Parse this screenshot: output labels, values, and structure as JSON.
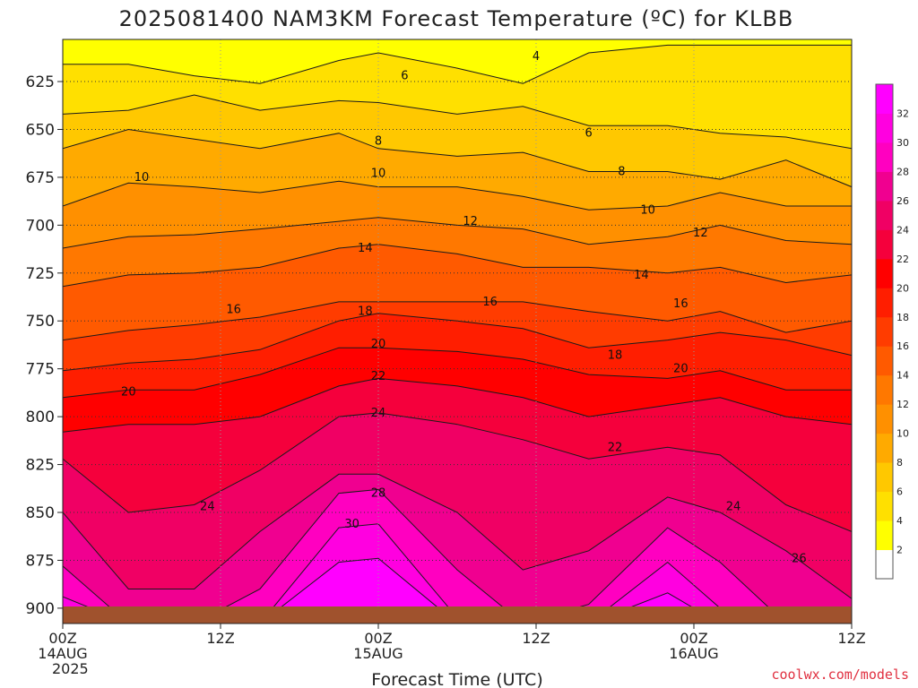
{
  "chart_data": {
    "type": "heatmap",
    "title": "2025081400 NAM3KM Forecast Temperature (ºC) for KLBB",
    "xlabel": "Forecast Time (UTC)",
    "ylabel": "",
    "x_unit": "forecast hour",
    "xlim": [
      0,
      60
    ],
    "ylim": [
      603,
      908
    ],
    "y_inverted": true,
    "grid": true,
    "y_ticks": [
      625,
      650,
      675,
      700,
      725,
      750,
      775,
      800,
      825,
      850,
      875,
      900
    ],
    "y_tick_labels": [
      "625",
      "650",
      "675",
      "700",
      "725",
      "750",
      "775",
      "800",
      "825",
      "850",
      "875",
      "900"
    ],
    "x_ticks": [
      {
        "hour": 0,
        "line1": "00Z",
        "line2": "14AUG",
        "line3": "2025"
      },
      {
        "hour": 12,
        "line1": "12Z",
        "line2": "",
        "line3": ""
      },
      {
        "hour": 24,
        "line1": "00Z",
        "line2": "15AUG",
        "line3": ""
      },
      {
        "hour": 36,
        "line1": "12Z",
        "line2": "",
        "line3": ""
      },
      {
        "hour": 48,
        "line1": "00Z",
        "line2": "16AUG",
        "line3": ""
      },
      {
        "hour": 60,
        "line1": "12Z",
        "line2": "",
        "line3": ""
      }
    ],
    "colorbar": {
      "labels": [
        "2",
        "4",
        "6",
        "8",
        "10",
        "12",
        "14",
        "16",
        "18",
        "20",
        "22",
        "24",
        "26",
        "28",
        "30",
        "32"
      ],
      "colors": [
        "#ffffff",
        "#ffff00",
        "#ffe000",
        "#ffc800",
        "#ffaa00",
        "#ff9000",
        "#ff7800",
        "#ff5a00",
        "#ff3c00",
        "#ff1e00",
        "#ff0000",
        "#f5003c",
        "#f00064",
        "#f00090",
        "#ff00c0",
        "#ff00e0",
        "#ff00ff"
      ]
    },
    "isotherms": [
      {
        "value": 4,
        "pressure": [
          616,
          616,
          622,
          626,
          614,
          610,
          618,
          626,
          610,
          606,
          606,
          606,
          606
        ]
      },
      {
        "value": 6,
        "pressure": [
          642,
          640,
          632,
          640,
          635,
          636,
          642,
          638,
          648,
          648,
          652,
          654,
          660
        ]
      },
      {
        "value": 8,
        "pressure": [
          660,
          650,
          655,
          660,
          652,
          660,
          664,
          662,
          672,
          672,
          676,
          666,
          680
        ]
      },
      {
        "value": 10,
        "pressure": [
          690,
          678,
          680,
          683,
          677,
          680,
          680,
          685,
          692,
          690,
          683,
          690,
          690
        ]
      },
      {
        "value": 12,
        "pressure": [
          712,
          706,
          705,
          702,
          698,
          696,
          700,
          702,
          710,
          706,
          700,
          708,
          710
        ]
      },
      {
        "value": 14,
        "pressure": [
          732,
          726,
          725,
          722,
          712,
          710,
          715,
          722,
          722,
          725,
          722,
          730,
          726
        ]
      },
      {
        "value": 16,
        "pressure": [
          760,
          755,
          752,
          748,
          740,
          740,
          740,
          740,
          745,
          750,
          745,
          756,
          750
        ]
      },
      {
        "value": 18,
        "pressure": [
          776,
          772,
          770,
          765,
          750,
          746,
          750,
          754,
          764,
          760,
          756,
          760,
          768
        ]
      },
      {
        "value": 20,
        "pressure": [
          790,
          786,
          786,
          778,
          764,
          764,
          766,
          770,
          778,
          780,
          776,
          786,
          786
        ]
      },
      {
        "value": 22,
        "pressure": [
          808,
          804,
          804,
          800,
          784,
          780,
          784,
          790,
          800,
          794,
          790,
          800,
          804
        ]
      },
      {
        "value": 24,
        "pressure": [
          822,
          850,
          846,
          828,
          800,
          798,
          804,
          812,
          822,
          816,
          820,
          846,
          860
        ]
      },
      {
        "value": 26,
        "pressure": [
          850,
          890,
          890,
          860,
          830,
          830,
          850,
          880,
          870,
          842,
          850,
          870,
          895
        ]
      },
      {
        "value": 28,
        "pressure": [
          878,
          908,
          908,
          890,
          840,
          838,
          880,
          908,
          898,
          858,
          876,
          908,
          908
        ]
      },
      {
        "value": 30,
        "pressure": [
          894,
          908,
          908,
          908,
          858,
          856,
          905,
          908,
          908,
          876,
          900,
          908,
          908
        ]
      },
      {
        "value": 32,
        "pressure": [
          908,
          908,
          908,
          908,
          876,
          874,
          908,
          908,
          908,
          892,
          908,
          908,
          908
        ]
      }
    ],
    "isotherm_hours": [
      0,
      5,
      10,
      15,
      21,
      24,
      30,
      35,
      40,
      46,
      50,
      55,
      60
    ],
    "contour_labels": [
      {
        "text": "4",
        "hour": 36.0,
        "pressure": 612
      },
      {
        "text": "6",
        "hour": 26.0,
        "pressure": 622
      },
      {
        "text": "6",
        "hour": 40.0,
        "pressure": 652
      },
      {
        "text": "8",
        "hour": 24.0,
        "pressure": 656
      },
      {
        "text": "8",
        "hour": 42.5,
        "pressure": 672
      },
      {
        "text": "10",
        "hour": 6.0,
        "pressure": 675
      },
      {
        "text": "10",
        "hour": 24.0,
        "pressure": 673
      },
      {
        "text": "10",
        "hour": 44.5,
        "pressure": 692
      },
      {
        "text": "12",
        "hour": 31.0,
        "pressure": 698
      },
      {
        "text": "12",
        "hour": 48.5,
        "pressure": 704
      },
      {
        "text": "14",
        "hour": 23.0,
        "pressure": 712
      },
      {
        "text": "14",
        "hour": 44.0,
        "pressure": 726
      },
      {
        "text": "16",
        "hour": 13.0,
        "pressure": 744
      },
      {
        "text": "16",
        "hour": 32.5,
        "pressure": 740
      },
      {
        "text": "16",
        "hour": 47.0,
        "pressure": 741
      },
      {
        "text": "18",
        "hour": 23.0,
        "pressure": 745
      },
      {
        "text": "18",
        "hour": 42.0,
        "pressure": 768
      },
      {
        "text": "20",
        "hour": 5.0,
        "pressure": 787
      },
      {
        "text": "20",
        "hour": 24.0,
        "pressure": 762
      },
      {
        "text": "20",
        "hour": 47.0,
        "pressure": 775
      },
      {
        "text": "22",
        "hour": 24.0,
        "pressure": 779
      },
      {
        "text": "22",
        "hour": 42.0,
        "pressure": 816
      },
      {
        "text": "24",
        "hour": 11.0,
        "pressure": 847
      },
      {
        "text": "24",
        "hour": 24.0,
        "pressure": 798
      },
      {
        "text": "24",
        "hour": 51.0,
        "pressure": 847
      },
      {
        "text": "26",
        "hour": 56.0,
        "pressure": 874
      },
      {
        "text": "28",
        "hour": 24.0,
        "pressure": 840
      },
      {
        "text": "30",
        "hour": 22.0,
        "pressure": 856
      }
    ]
  },
  "credit": "coolwx.com/models"
}
